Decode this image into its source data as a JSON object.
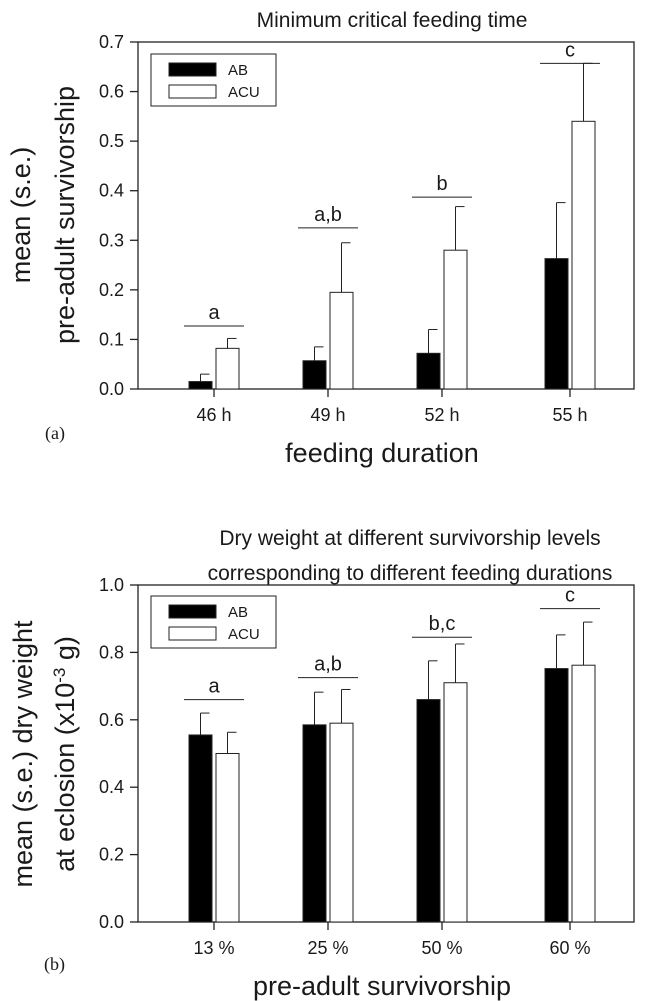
{
  "chart_data": [
    {
      "type": "bar",
      "panel_label": "(a)",
      "title": "Minimum critical feeding time",
      "xlabel": "feeding duration",
      "ylabel": [
        "mean (s.e.)",
        "pre-adult survivorship"
      ],
      "categories": [
        "46 h",
        "49 h",
        "52 h",
        "55 h"
      ],
      "series": [
        {
          "name": "AB",
          "color": "#000000",
          "values": [
            0.015,
            0.057,
            0.072,
            0.263
          ],
          "errors": [
            0.015,
            0.028,
            0.048,
            0.113
          ]
        },
        {
          "name": "ACU",
          "color": "#ffffff",
          "values": [
            0.082,
            0.195,
            0.28,
            0.54
          ],
          "errors": [
            0.02,
            0.1,
            0.088,
            0.117
          ]
        }
      ],
      "yticks": [
        "0.0",
        "0.1",
        "0.2",
        "0.3",
        "0.4",
        "0.5",
        "0.6",
        "0.7"
      ],
      "ylim": [
        0,
        0.7
      ],
      "significance": [
        {
          "category": "46 h",
          "label": "a",
          "y": 0.127
        },
        {
          "category": "49 h",
          "label": "a,b",
          "y": 0.325
        },
        {
          "category": "52 h",
          "label": "b",
          "y": 0.387
        },
        {
          "category": "55 h",
          "label": "c",
          "y": 0.657
        }
      ],
      "legend": "top-left",
      "grid": false
    },
    {
      "type": "bar",
      "panel_label": "(b)",
      "title": [
        "Dry weight at different survivorship levels",
        "corresponding to different feeding durations"
      ],
      "xlabel": "pre-adult survivorship",
      "ylabel": [
        "mean (s.e.) dry weight",
        "at eclosion (x10",
        "-3",
        " g)"
      ],
      "categories": [
        "13 %",
        "25 %",
        "50 %",
        "60 %"
      ],
      "series": [
        {
          "name": "AB",
          "color": "#000000",
          "values": [
            0.555,
            0.585,
            0.66,
            0.752
          ],
          "errors": [
            0.065,
            0.097,
            0.115,
            0.1
          ]
        },
        {
          "name": "ACU",
          "color": "#ffffff",
          "values": [
            0.5,
            0.59,
            0.71,
            0.762
          ],
          "errors": [
            0.063,
            0.1,
            0.115,
            0.128
          ]
        }
      ],
      "yticks": [
        "0.0",
        "0.2",
        "0.4",
        "0.6",
        "0.8",
        "1.0"
      ],
      "ylim": [
        0,
        1.0
      ],
      "significance": [
        {
          "category": "13 %",
          "label": "a",
          "y": 0.66
        },
        {
          "category": "25 %",
          "label": "a,b",
          "y": 0.725
        },
        {
          "category": "50 %",
          "label": "b,c",
          "y": 0.845
        },
        {
          "category": "60 %",
          "label": "c",
          "y": 0.93
        }
      ],
      "legend": "top-left",
      "grid": false
    }
  ]
}
